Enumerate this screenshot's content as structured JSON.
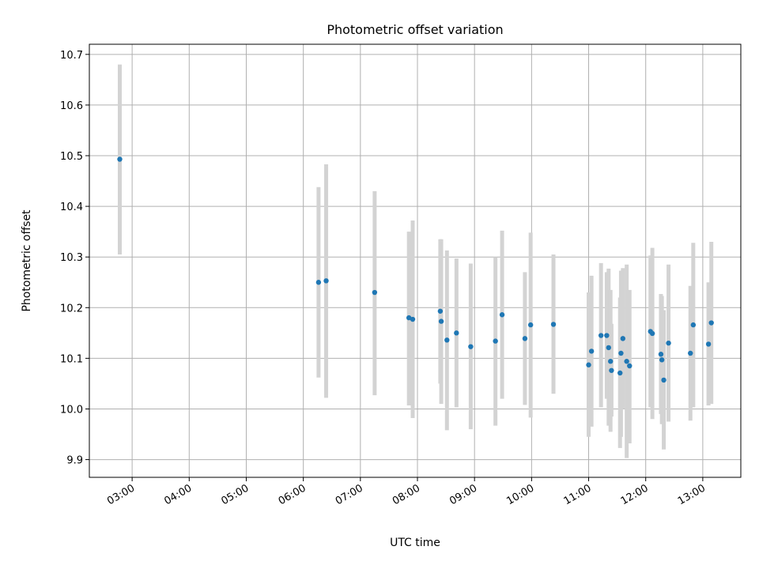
{
  "chart_data": {
    "type": "scatter",
    "title": "Photometric offset variation",
    "xlabel": "UTC time",
    "ylabel": "Photometric offset",
    "x_ticks": [
      "03:00",
      "04:00",
      "05:00",
      "06:00",
      "07:00",
      "08:00",
      "09:00",
      "10:00",
      "11:00",
      "12:00",
      "13:00"
    ],
    "y_ticks": [
      "9.9",
      "10.0",
      "10.1",
      "10.2",
      "10.3",
      "10.4",
      "10.5",
      "10.6",
      "10.7"
    ],
    "xlim": [
      "02:15",
      "13:40"
    ],
    "ylim": [
      9.865,
      10.72
    ],
    "grid": true,
    "point_color": "#1f77b4",
    "errorbar_color": "#d3d3d3",
    "points": [
      {
        "t": "02:47",
        "y": 10.493,
        "lo": 10.305,
        "hi": 10.68
      },
      {
        "t": "06:16",
        "y": 10.25,
        "lo": 10.062,
        "hi": 10.438
      },
      {
        "t": "06:24",
        "y": 10.253,
        "lo": 10.022,
        "hi": 10.483
      },
      {
        "t": "07:15",
        "y": 10.23,
        "lo": 10.027,
        "hi": 10.43
      },
      {
        "t": "07:51",
        "y": 10.18,
        "lo": 10.007,
        "hi": 10.35
      },
      {
        "t": "07:55",
        "y": 10.177,
        "lo": 9.982,
        "hi": 10.372
      },
      {
        "t": "08:24",
        "y": 10.193,
        "lo": 10.05,
        "hi": 10.335
      },
      {
        "t": "08:25",
        "y": 10.173,
        "lo": 10.01,
        "hi": 10.335
      },
      {
        "t": "08:31",
        "y": 10.136,
        "lo": 9.958,
        "hi": 10.313
      },
      {
        "t": "08:41",
        "y": 10.15,
        "lo": 10.003,
        "hi": 10.297
      },
      {
        "t": "08:56",
        "y": 10.123,
        "lo": 9.96,
        "hi": 10.287
      },
      {
        "t": "09:22",
        "y": 10.134,
        "lo": 9.967,
        "hi": 10.3
      },
      {
        "t": "09:29",
        "y": 10.186,
        "lo": 10.02,
        "hi": 10.352
      },
      {
        "t": "09:53",
        "y": 10.139,
        "lo": 10.008,
        "hi": 10.27
      },
      {
        "t": "09:59",
        "y": 10.166,
        "lo": 9.983,
        "hi": 10.348
      },
      {
        "t": "10:23",
        "y": 10.167,
        "lo": 10.03,
        "hi": 10.305
      },
      {
        "t": "11:00",
        "y": 10.087,
        "lo": 9.945,
        "hi": 10.23
      },
      {
        "t": "11:03",
        "y": 10.114,
        "lo": 9.965,
        "hi": 10.263
      },
      {
        "t": "11:13",
        "y": 10.145,
        "lo": 10.003,
        "hi": 10.288
      },
      {
        "t": "11:19",
        "y": 10.145,
        "lo": 10.02,
        "hi": 10.27
      },
      {
        "t": "11:21",
        "y": 10.121,
        "lo": 9.967,
        "hi": 10.277
      },
      {
        "t": "11:23",
        "y": 10.094,
        "lo": 9.955,
        "hi": 10.235
      },
      {
        "t": "11:24",
        "y": 10.076,
        "lo": 9.985,
        "hi": 10.168
      },
      {
        "t": "11:33",
        "y": 10.071,
        "lo": 9.923,
        "hi": 10.22
      },
      {
        "t": "11:34",
        "y": 10.11,
        "lo": 9.945,
        "hi": 10.273
      },
      {
        "t": "11:36",
        "y": 10.139,
        "lo": 10.0,
        "hi": 10.278
      },
      {
        "t": "11:40",
        "y": 10.094,
        "lo": 9.903,
        "hi": 10.285
      },
      {
        "t": "11:43",
        "y": 10.085,
        "lo": 9.932,
        "hi": 10.235
      },
      {
        "t": "12:05",
        "y": 10.153,
        "lo": 10.003,
        "hi": 10.303
      },
      {
        "t": "12:07",
        "y": 10.149,
        "lo": 9.98,
        "hi": 10.318
      },
      {
        "t": "12:16",
        "y": 10.108,
        "lo": 9.99,
        "hi": 10.227
      },
      {
        "t": "12:17",
        "y": 10.097,
        "lo": 9.97,
        "hi": 10.223
      },
      {
        "t": "12:19",
        "y": 10.057,
        "lo": 9.92,
        "hi": 10.195
      },
      {
        "t": "12:24",
        "y": 10.13,
        "lo": 9.975,
        "hi": 10.285
      },
      {
        "t": "12:47",
        "y": 10.11,
        "lo": 9.977,
        "hi": 10.243
      },
      {
        "t": "12:50",
        "y": 10.166,
        "lo": 10.003,
        "hi": 10.328
      },
      {
        "t": "13:06",
        "y": 10.128,
        "lo": 10.007,
        "hi": 10.25
      },
      {
        "t": "13:09",
        "y": 10.17,
        "lo": 10.01,
        "hi": 10.33
      }
    ]
  }
}
